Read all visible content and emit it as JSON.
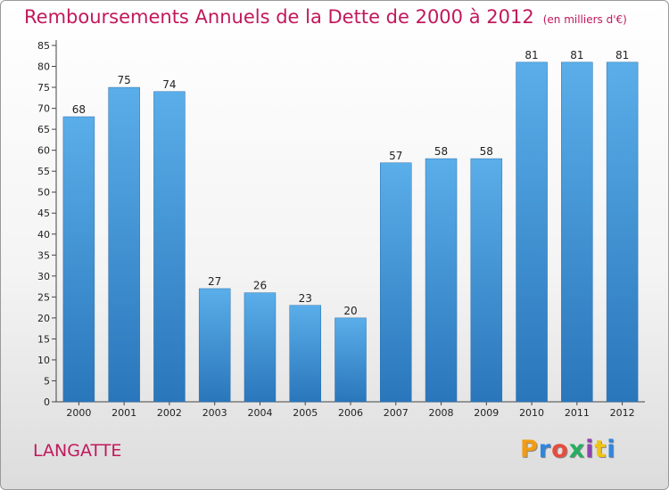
{
  "chart_data": {
    "type": "bar",
    "title": "Remboursements Annuels de la Dette de 2000 à 2012",
    "unit": "(en milliers d'€)",
    "categories": [
      "2000",
      "2001",
      "2002",
      "2003",
      "2004",
      "2005",
      "2006",
      "2007",
      "2008",
      "2009",
      "2010",
      "2011",
      "2012"
    ],
    "values": [
      68,
      75,
      74,
      27,
      26,
      23,
      20,
      57,
      58,
      58,
      81,
      81,
      81
    ],
    "ylim": [
      0,
      85
    ],
    "yticks": [
      0,
      5,
      10,
      15,
      20,
      25,
      30,
      35,
      40,
      45,
      50,
      55,
      60,
      65,
      70,
      75,
      80,
      85
    ],
    "grid": false,
    "bar_color": "#3d8fd6"
  },
  "footer": {
    "commune": "LANGATTE",
    "logo": {
      "letters": [
        "P",
        "r",
        "o",
        "x",
        "i",
        "t",
        "i"
      ],
      "colors": [
        "#f39c12",
        "#2e86de",
        "#e74c3c",
        "#27ae60",
        "#8e44ad",
        "#f1c40f",
        "#2e86de"
      ]
    }
  }
}
